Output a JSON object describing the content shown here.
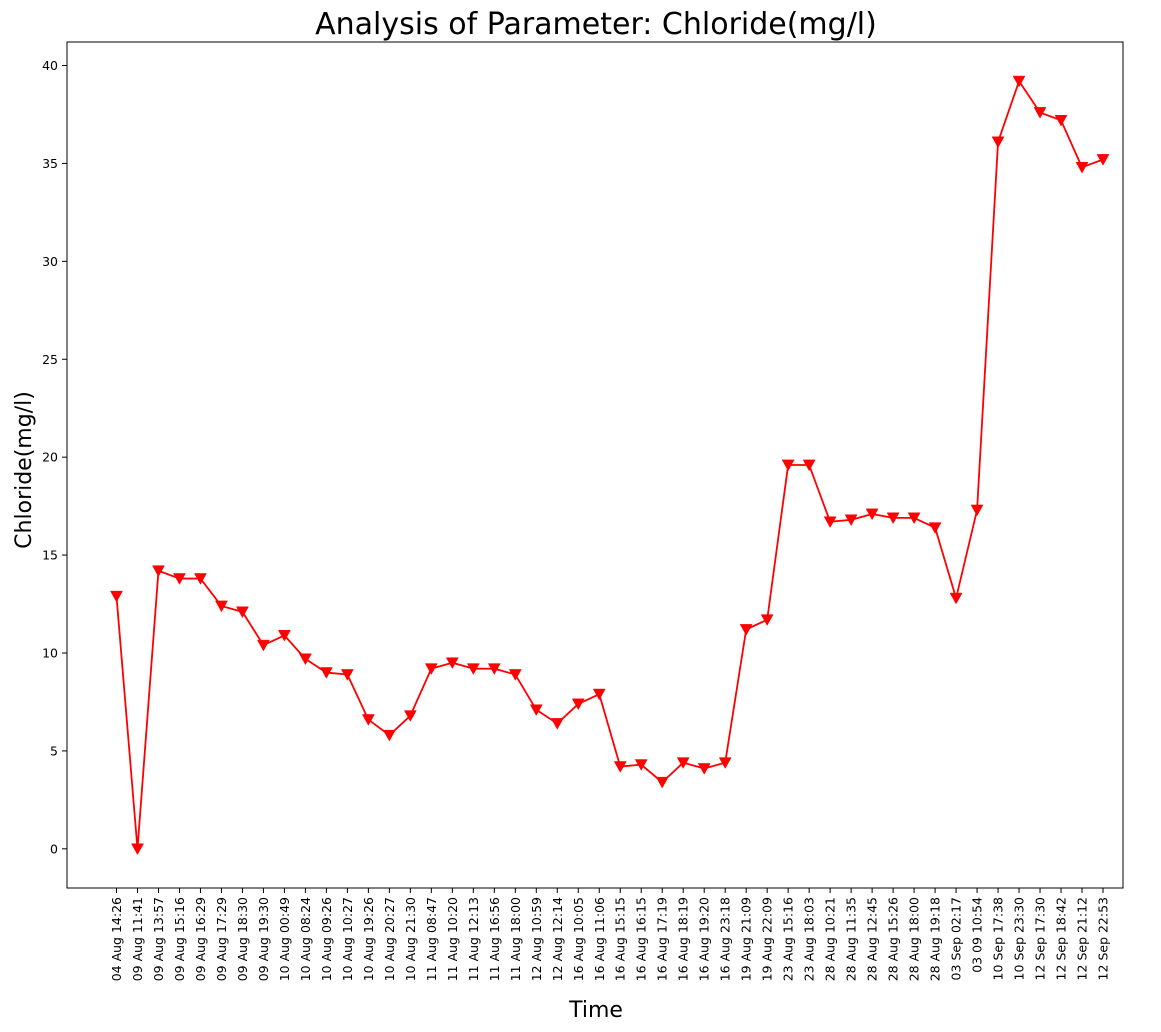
{
  "chart_data": {
    "type": "line",
    "title": "Analysis of Parameter: Chloride(mg/l)",
    "xlabel": "Time",
    "ylabel": "Chloride(mg/l)",
    "ylim": [
      -2,
      41.2
    ],
    "yticks": [
      0,
      5,
      10,
      15,
      20,
      25,
      30,
      35,
      40
    ],
    "grid": false,
    "marker": "triangle-down",
    "line_color": "#ff0000",
    "marker_color": "#ff0000",
    "categories": [
      "04 Aug 14:26",
      "09 Aug 11:41",
      "09 Aug 13:57",
      "09 Aug 15:16",
      "09 Aug 16:29",
      "09 Aug 17:29",
      "09 Aug 18:30",
      "09 Aug 19:30",
      "10 Aug 00:49",
      "10 Aug 08:24",
      "10 Aug 09:26",
      "10 Aug 10:27",
      "10 Aug 19:26",
      "10 Aug 20:27",
      "10 Aug 21:30",
      "11 Aug 08:47",
      "11 Aug 10:20",
      "11 Aug 12:13",
      "11 Aug 16:56",
      "11 Aug 18:00",
      "12 Aug 10:59",
      "12 Aug 12:14",
      "16 Aug 10:05",
      "16 Aug 11:06",
      "16 Aug 15:15",
      "16 Aug 16:15",
      "16 Aug 17:19",
      "16 Aug 18:19",
      "16 Aug 19:20",
      "16 Aug 23:18",
      "19 Aug 21:09",
      "19 Aug 22:09",
      "23 Aug 15:16",
      "23 Aug 18:03",
      "28 Aug 10:21",
      "28 Aug 11:35",
      "28 Aug 12:45",
      "28 Aug 15:26",
      "28 Aug 18:00",
      "28 Aug 19:18",
      "03 Sep 02:17",
      "03 09 10:54",
      "10 Sep 17:38",
      "10 Sep 23:30",
      "12 Sep 17:30",
      "12 Sep 18:42",
      "12 Sep 21:12",
      "12 Sep 22:53"
    ],
    "values": [
      12.9,
      0.0,
      14.2,
      13.8,
      13.8,
      12.4,
      12.1,
      10.4,
      10.9,
      9.7,
      9.0,
      8.9,
      6.6,
      5.8,
      6.8,
      9.2,
      9.5,
      9.2,
      9.2,
      8.9,
      7.1,
      6.4,
      7.4,
      7.9,
      4.2,
      4.3,
      3.4,
      4.4,
      4.1,
      4.4,
      11.2,
      11.7,
      19.6,
      19.6,
      16.7,
      16.8,
      17.1,
      16.9,
      16.9,
      16.4,
      12.8,
      17.3,
      36.1,
      39.2,
      37.6,
      37.2,
      34.8,
      35.2
    ]
  }
}
